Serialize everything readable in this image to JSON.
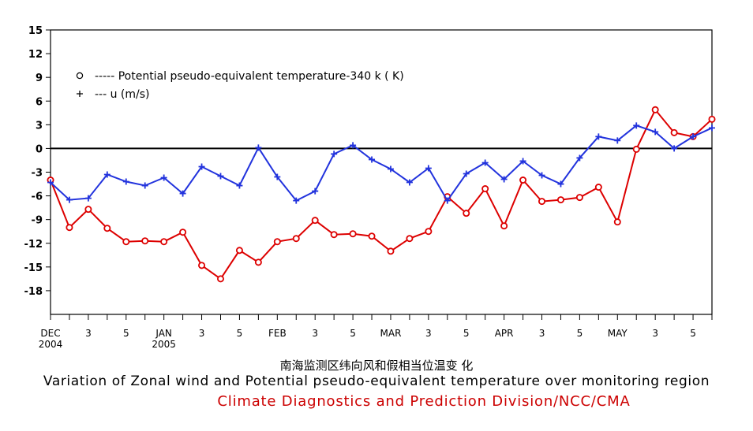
{
  "chart_data": {
    "type": "line",
    "title": "Variation of Zonal wind and Potential pseudo-equivalent temperature over monitoring region",
    "title_cn": "南海监测区纬向风和假相当位温变 化",
    "credit": "Climate Diagnostics and Prediction Division/NCC/CMA",
    "ylim": [
      -21,
      15
    ],
    "yticks": [
      15,
      12,
      9,
      6,
      3,
      0,
      -3,
      -6,
      -9,
      -12,
      -15,
      -18
    ],
    "xlim": [
      0,
      35
    ],
    "xticks": [
      {
        "x": 0,
        "label": "DEC",
        "sub": "2004"
      },
      {
        "x": 2,
        "label": "3",
        "sub": ""
      },
      {
        "x": 4,
        "label": "5",
        "sub": ""
      },
      {
        "x": 6,
        "label": "JAN",
        "sub": "2005"
      },
      {
        "x": 8,
        "label": "3",
        "sub": ""
      },
      {
        "x": 10,
        "label": "5",
        "sub": ""
      },
      {
        "x": 12,
        "label": "FEB",
        "sub": ""
      },
      {
        "x": 14,
        "label": "3",
        "sub": ""
      },
      {
        "x": 16,
        "label": "5",
        "sub": ""
      },
      {
        "x": 18,
        "label": "MAR",
        "sub": ""
      },
      {
        "x": 20,
        "label": "3",
        "sub": ""
      },
      {
        "x": 22,
        "label": "5",
        "sub": ""
      },
      {
        "x": 24,
        "label": "APR",
        "sub": ""
      },
      {
        "x": 26,
        "label": "3",
        "sub": ""
      },
      {
        "x": 28,
        "label": "5",
        "sub": ""
      },
      {
        "x": 30,
        "label": "MAY",
        "sub": ""
      },
      {
        "x": 32,
        "label": "3",
        "sub": ""
      },
      {
        "x": 34,
        "label": "5",
        "sub": ""
      }
    ],
    "legend": [
      {
        "marker": "o",
        "text": "-----  Potential pseudo-equivalent temperature-340 k  ( K)"
      },
      {
        "marker": "+",
        "text": "---   u  (m/s)"
      }
    ],
    "series": [
      {
        "name": "Potential pseudo-equivalent temperature-340 k",
        "unit": "K",
        "color": "#dd0000",
        "marker": "circle",
        "values": [
          -4.0,
          -10.0,
          -7.7,
          -10.1,
          -11.8,
          -11.7,
          -11.8,
          -10.6,
          -14.8,
          -16.5,
          -12.9,
          -14.4,
          -11.8,
          -11.4,
          -9.1,
          -10.9,
          -10.8,
          -11.1,
          -13.0,
          -11.4,
          -10.5,
          -6.1,
          -8.2,
          -5.1,
          -9.8,
          -4.0,
          -6.7,
          -6.5,
          -6.2,
          -4.9,
          -9.3,
          -0.1,
          4.9,
          2.0,
          1.5,
          3.7
        ]
      },
      {
        "name": "u",
        "unit": "m/s",
        "color": "#2233dd",
        "marker": "plus",
        "values": [
          -4.3,
          -6.5,
          -6.3,
          -3.3,
          -4.2,
          -4.7,
          -3.7,
          -5.7,
          -2.3,
          -3.5,
          -4.7,
          0.1,
          -3.6,
          -6.6,
          -5.4,
          -0.7,
          0.4,
          -1.4,
          -2.6,
          -4.3,
          -2.5,
          -6.6,
          -3.2,
          -1.8,
          -3.9,
          -1.6,
          -3.4,
          -4.5,
          -1.2,
          1.5,
          1.0,
          2.9,
          2.1,
          0.0,
          1.5,
          2.6
        ]
      }
    ]
  }
}
